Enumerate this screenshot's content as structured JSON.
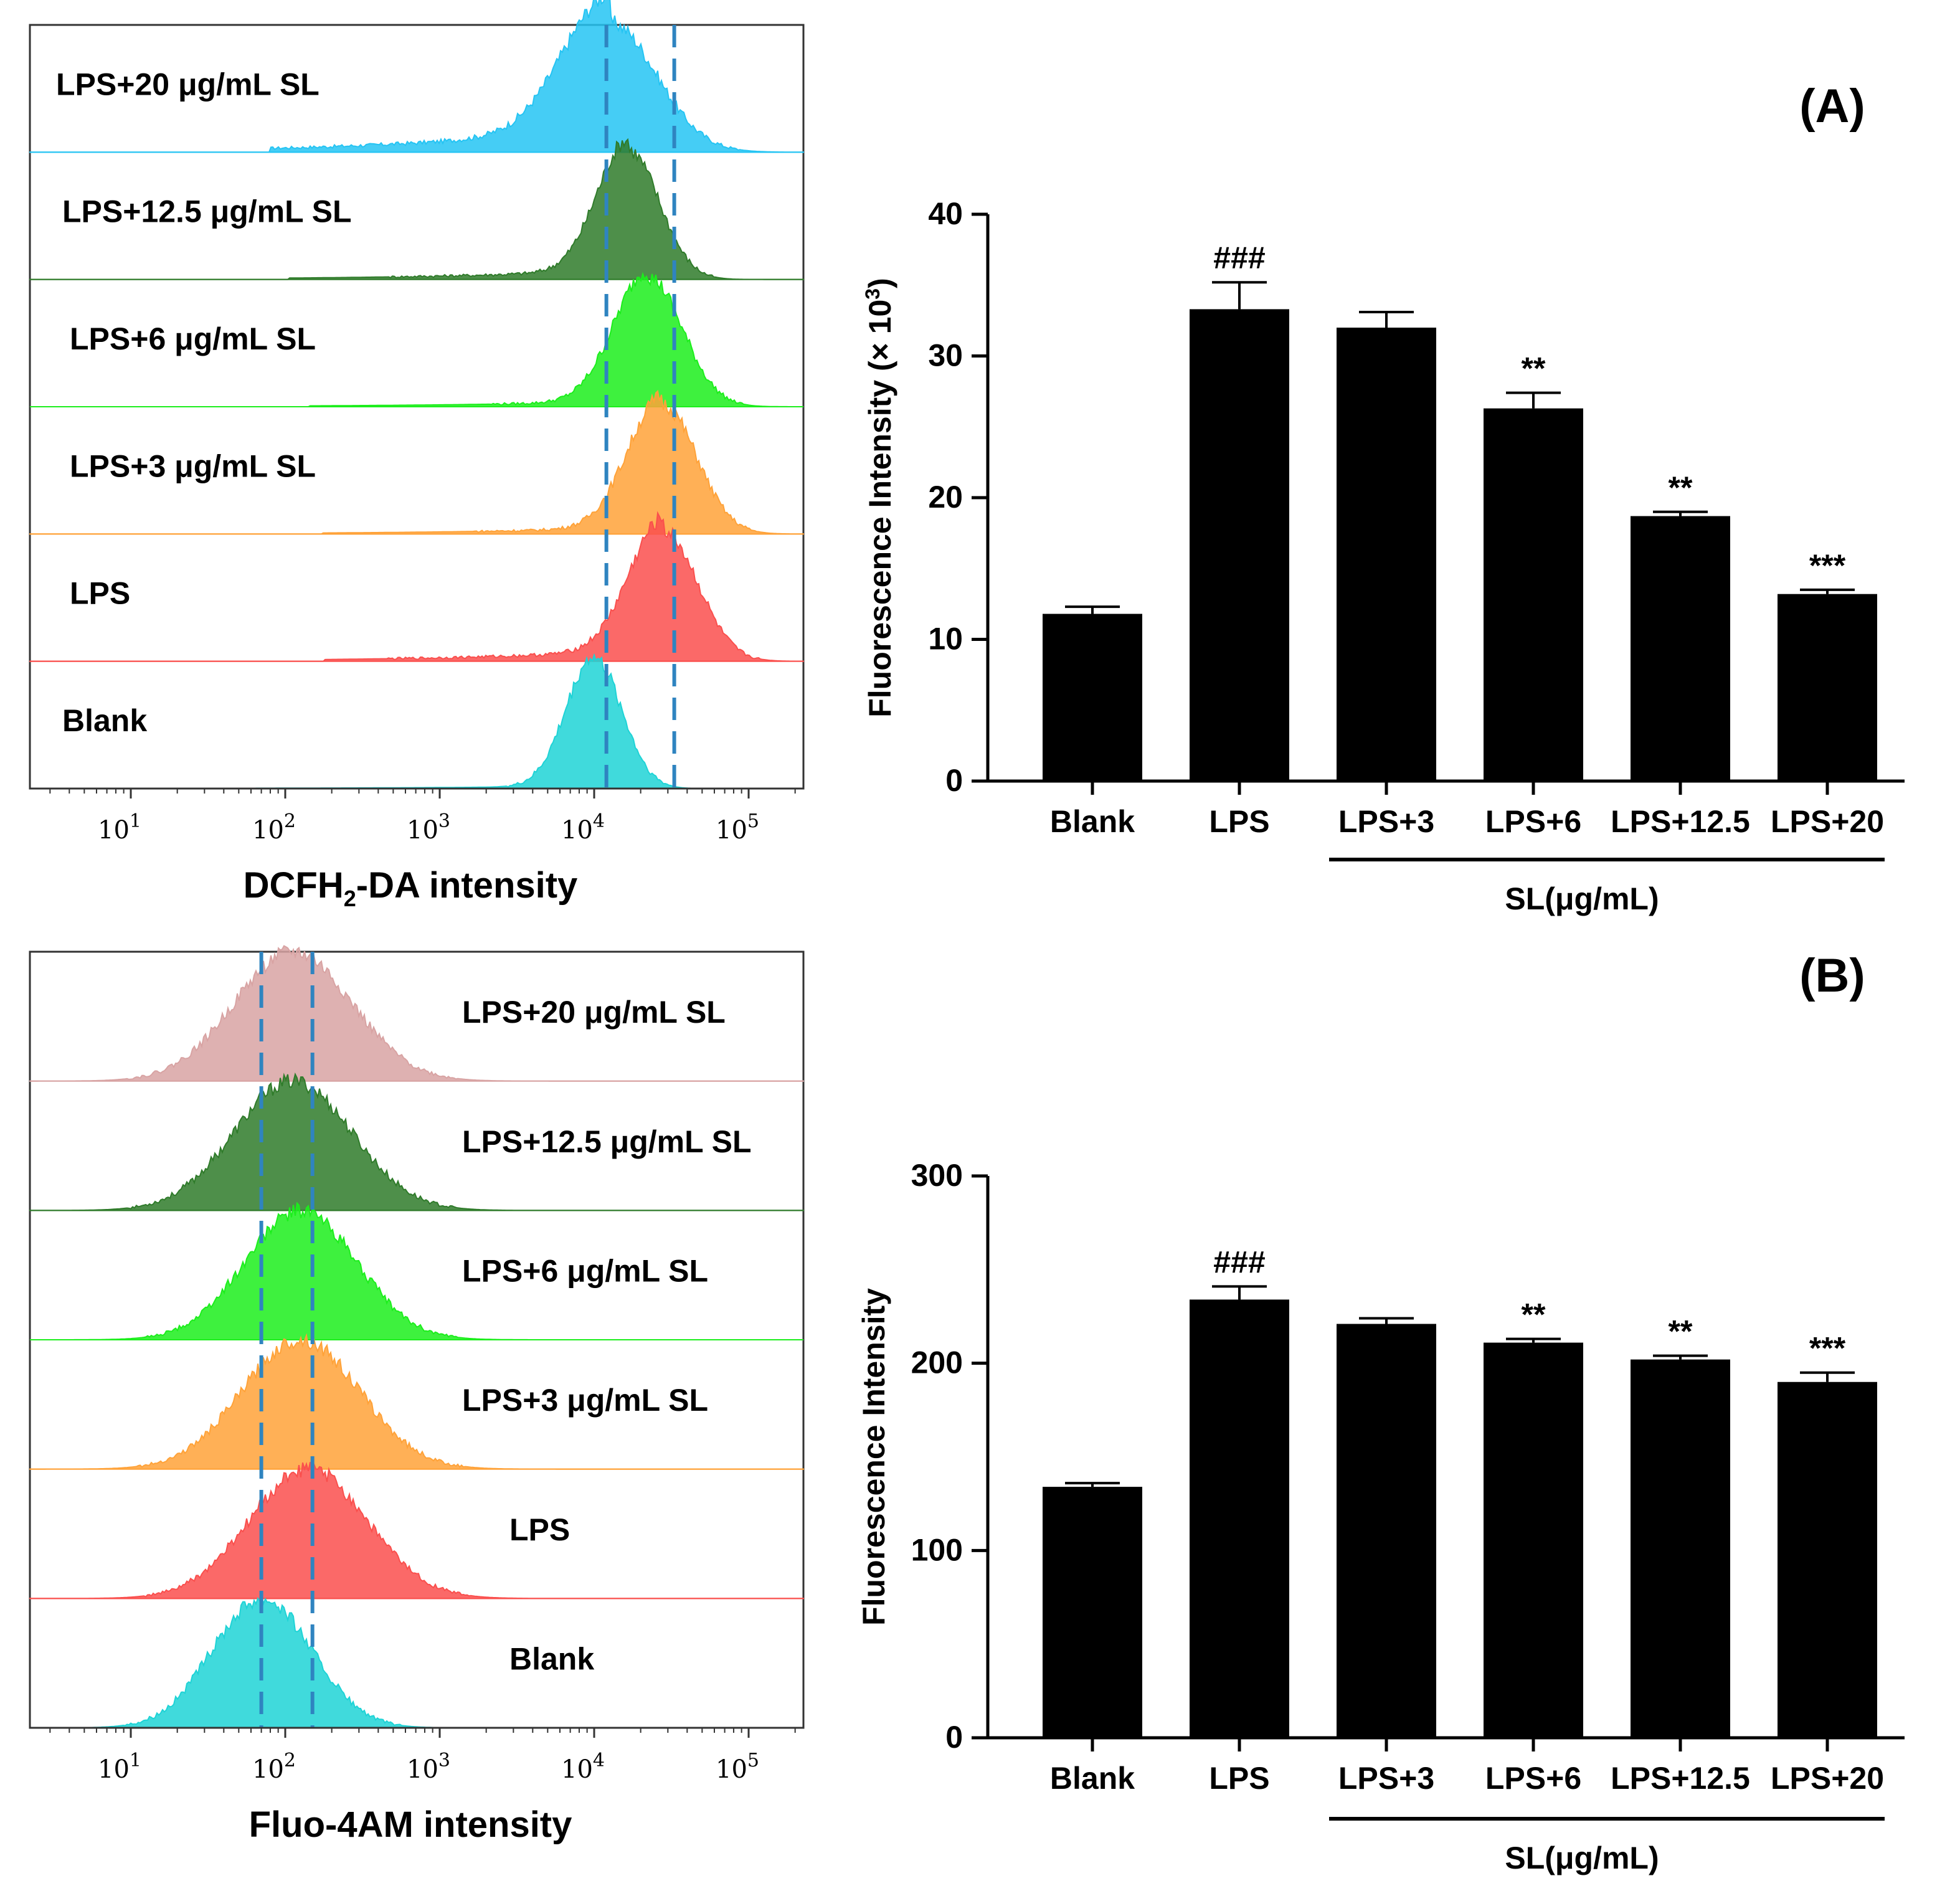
{
  "colors": {
    "blank": "#1ed3d6",
    "lps": "#fa4f4d",
    "lps3": "#ffa238",
    "lps6": "#1cee1c",
    "lps125": "#2f7b2a",
    "lps20_A": "#25c4f3",
    "lps20_B": "#d8a3a3",
    "marker": "#2f84c0",
    "bar": "#000000"
  },
  "chart_data": [
    {
      "id": "histogram-A",
      "type": "area",
      "xscale": "log",
      "xlabel_prefix": "DCFH",
      "xlabel_sub": "2",
      "xlabel_suffix": "-DA intensity",
      "xticks": [
        "10",
        "10",
        "10",
        "10",
        "10"
      ],
      "xtick_exponents": [
        "1",
        "2",
        "3",
        "4",
        "5"
      ],
      "xtick_values": [
        10,
        100,
        1000,
        10000,
        100000
      ],
      "marker_lines": [
        12000,
        33000
      ],
      "series": [
        {
          "name": "LPS+20 μg/mL SL",
          "color_key": "lps20_A",
          "peak_log": 4.1,
          "width": 0.3,
          "tail": 0.22
        },
        {
          "name": "LPS+12.5 μg/mL SL",
          "color_key": "lps125",
          "peak_log": 4.22,
          "width": 0.2,
          "tail": 0.08
        },
        {
          "name": "LPS+6 μg/mL SL",
          "color_key": "lps6",
          "peak_log": 4.35,
          "width": 0.22,
          "tail": 0.05
        },
        {
          "name": "LPS+3 μg/mL SL",
          "color_key": "lps3",
          "peak_log": 4.44,
          "width": 0.22,
          "tail": 0.06
        },
        {
          "name": "LPS",
          "color_key": "lps",
          "peak_log": 4.45,
          "width": 0.22,
          "tail": 0.1
        },
        {
          "name": "Blank",
          "color_key": "blank",
          "peak_log": 4.0,
          "width": 0.18,
          "tail": 0.02
        }
      ]
    },
    {
      "id": "bar-A",
      "panel_label": "A",
      "type": "bar",
      "categories": [
        "Blank",
        "LPS",
        "LPS+3",
        "LPS+6",
        "LPS+12.5",
        "LPS+20"
      ],
      "values": [
        11.8,
        33.3,
        32.0,
        26.3,
        18.7,
        13.2
      ],
      "errors": [
        0.5,
        1.9,
        1.1,
        1.1,
        0.3,
        0.3
      ],
      "annotations": [
        "",
        "###",
        "",
        "**",
        "**",
        "***"
      ],
      "ylabel": "Fluorescence Intensity (× 10",
      "ylabel_sup": "3",
      "ylabel_end": ")",
      "ylim": [
        0,
        40
      ],
      "yticks": [
        "0",
        "10",
        "20",
        "30",
        "40"
      ],
      "ytick_values": [
        0,
        10,
        20,
        30,
        40
      ],
      "group_label": "SL(μg/mL)"
    },
    {
      "id": "histogram-B",
      "type": "area",
      "xscale": "log",
      "xlabel": "Fluo-4AM intensity",
      "xticks": [
        "10",
        "10",
        "10",
        "10",
        "10"
      ],
      "xtick_exponents": [
        "1",
        "2",
        "3",
        "4",
        "5"
      ],
      "xtick_values": [
        10,
        100,
        1000,
        10000,
        100000
      ],
      "marker_lines": [
        70,
        150
      ],
      "series": [
        {
          "name": "LPS+20 μg/mL SL",
          "color_key": "lps20_B",
          "peak_log": 2.05,
          "width": 0.38,
          "tail": 0.0
        },
        {
          "name": "LPS+12.5 μg/mL SL",
          "color_key": "lps125",
          "peak_log": 2.05,
          "width": 0.38,
          "tail": 0.0
        },
        {
          "name": "LPS+6 μg/mL SL",
          "color_key": "lps6",
          "peak_log": 2.1,
          "width": 0.36,
          "tail": 0.0
        },
        {
          "name": "LPS+3 μg/mL SL",
          "color_key": "lps3",
          "peak_log": 2.1,
          "width": 0.38,
          "tail": 0.0
        },
        {
          "name": "LPS",
          "color_key": "lps",
          "peak_log": 2.15,
          "width": 0.38,
          "tail": 0.0
        },
        {
          "name": "Blank",
          "color_key": "blank",
          "peak_log": 1.85,
          "width": 0.32,
          "tail": 0.0
        }
      ]
    },
    {
      "id": "bar-B",
      "panel_label": "B",
      "type": "bar",
      "categories": [
        "Blank",
        "LPS",
        "LPS+3",
        "LPS+6",
        "LPS+12.5",
        "LPS+20"
      ],
      "values": [
        134,
        234,
        221,
        211,
        202,
        190
      ],
      "errors": [
        2,
        7,
        3,
        2,
        2,
        5
      ],
      "annotations": [
        "",
        "###",
        "",
        "**",
        "**",
        "***"
      ],
      "ylabel": "Fluorescence Intensity",
      "ylim": [
        0,
        300
      ],
      "yticks": [
        "0",
        "100",
        "200",
        "300"
      ],
      "ytick_values": [
        0,
        100,
        200,
        300
      ],
      "group_label": "SL(μg/mL)"
    }
  ]
}
